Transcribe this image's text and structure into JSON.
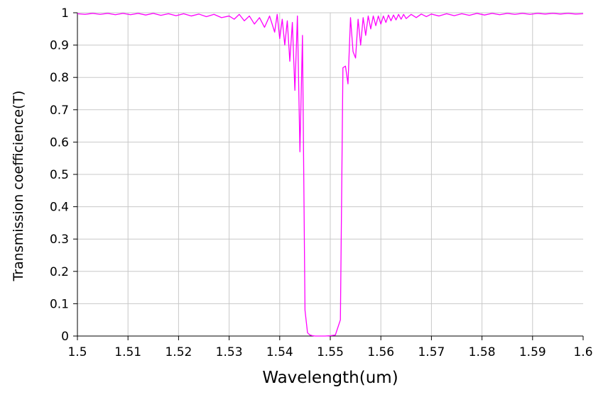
{
  "chart_data": {
    "type": "line",
    "title": "",
    "xlabel": "Wavelength(um)",
    "ylabel": "Transmission coefficience(T)",
    "xlim": [
      1.5,
      1.6
    ],
    "ylim": [
      0,
      1
    ],
    "x_ticks": [
      "1.5",
      "1.51",
      "1.52",
      "1.53",
      "1.54",
      "1.55",
      "1.56",
      "1.57",
      "1.58",
      "1.59",
      "1.6"
    ],
    "y_ticks": [
      "0",
      "0.1",
      "0.2",
      "0.3",
      "0.4",
      "0.5",
      "0.6",
      "0.7",
      "0.8",
      "0.9",
      "1"
    ],
    "grid": true,
    "legend": "none",
    "series_color": "#ff00ff",
    "series": [
      {
        "x": [
          1.5,
          1.5015,
          1.503,
          1.5045,
          1.506,
          1.5075,
          1.509,
          1.5105,
          1.512,
          1.5135,
          1.515,
          1.5165,
          1.518,
          1.5195,
          1.521,
          1.5225,
          1.524,
          1.5255,
          1.527,
          1.5285,
          1.53,
          1.531,
          1.532,
          1.533,
          1.534,
          1.535,
          1.536,
          1.537,
          1.538,
          1.539,
          1.5395,
          1.54,
          1.5405,
          1.541,
          1.5415,
          1.542,
          1.5425,
          1.543,
          1.5435,
          1.544,
          1.5445,
          1.545,
          1.5455,
          1.546,
          1.5465,
          1.547,
          1.548,
          1.549,
          1.55,
          1.551,
          1.552,
          1.5525,
          1.553,
          1.5535,
          1.554,
          1.5545,
          1.555,
          1.5555,
          1.556,
          1.5565,
          1.557,
          1.5575,
          1.558,
          1.5585,
          1.559,
          1.5595,
          1.56,
          1.5605,
          1.561,
          1.5615,
          1.562,
          1.5625,
          1.563,
          1.5635,
          1.564,
          1.5645,
          1.565,
          1.566,
          1.567,
          1.568,
          1.569,
          1.57,
          1.5715,
          1.573,
          1.5745,
          1.576,
          1.5775,
          1.579,
          1.5805,
          1.582,
          1.5835,
          1.585,
          1.5865,
          1.588,
          1.5895,
          1.591,
          1.5925,
          1.594,
          1.5955,
          1.597,
          1.5985,
          1.6
        ],
        "y": [
          0.997,
          0.995,
          0.998,
          0.995,
          0.998,
          0.994,
          0.998,
          0.994,
          0.998,
          0.993,
          0.998,
          0.992,
          0.997,
          0.991,
          0.997,
          0.99,
          0.996,
          0.988,
          0.995,
          0.985,
          0.99,
          0.98,
          0.995,
          0.975,
          0.99,
          0.965,
          0.985,
          0.955,
          0.99,
          0.94,
          0.995,
          0.92,
          0.98,
          0.9,
          0.975,
          0.85,
          0.97,
          0.76,
          0.99,
          0.57,
          0.93,
          0.08,
          0.01,
          0.003,
          0.001,
          0.0,
          0.0,
          0.0,
          0.001,
          0.003,
          0.05,
          0.83,
          0.835,
          0.78,
          0.985,
          0.88,
          0.86,
          0.98,
          0.9,
          0.985,
          0.93,
          0.99,
          0.95,
          0.99,
          0.96,
          0.99,
          0.965,
          0.99,
          0.97,
          0.993,
          0.975,
          0.993,
          0.978,
          0.995,
          0.98,
          0.995,
          0.982,
          0.995,
          0.985,
          0.996,
          0.988,
          0.996,
          0.99,
          0.997,
          0.991,
          0.997,
          0.992,
          0.998,
          0.993,
          0.998,
          0.994,
          0.998,
          0.995,
          0.998,
          0.995,
          0.998,
          0.996,
          0.998,
          0.996,
          0.998,
          0.996,
          0.997
        ]
      }
    ]
  }
}
